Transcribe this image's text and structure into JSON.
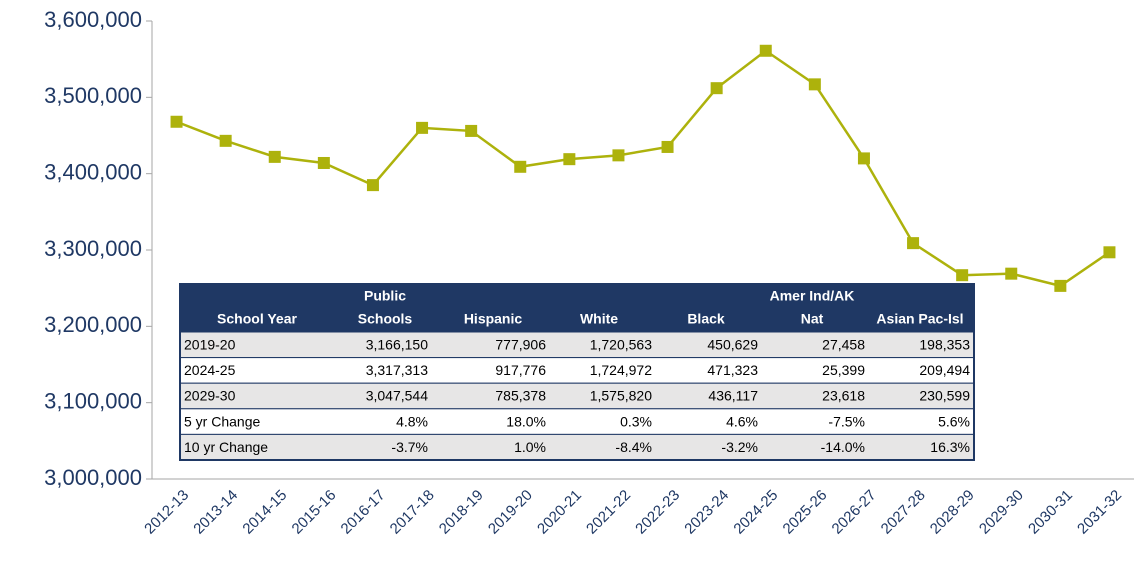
{
  "chart_data": {
    "type": "line",
    "categories": [
      "2012-13",
      "2013-14",
      "2014-15",
      "2015-16",
      "2016-17",
      "2017-18",
      "2018-19",
      "2019-20",
      "2020-21",
      "2021-22",
      "2022-23",
      "2023-24",
      "2024-25",
      "2025-26",
      "2026-27",
      "2027-28",
      "2028-29",
      "2029-30",
      "2030-31",
      "2031-32"
    ],
    "series": [
      {
        "color": "#adb20c",
        "values": [
          3468000,
          3443000,
          3422000,
          3414000,
          3385000,
          3460000,
          3456000,
          3409000,
          3419000,
          3424000,
          3435000,
          3512000,
          3561000,
          3517000,
          3420000,
          3309000,
          3267000,
          3269000,
          3253000,
          3297000
        ]
      }
    ],
    "ylim": [
      3000000,
      3600000
    ],
    "yticks": [
      {
        "value": 3000000,
        "label": "3,000,000"
      },
      {
        "value": 3100000,
        "label": "3,100,000"
      },
      {
        "value": 3200000,
        "label": "3,200,000"
      },
      {
        "value": 3300000,
        "label": "3,300,000"
      },
      {
        "value": 3400000,
        "label": "3,400,000"
      },
      {
        "value": 3500000,
        "label": "3,500,000"
      },
      {
        "value": 3600000,
        "label": "3,600,000"
      }
    ],
    "table": {
      "header": [
        [
          "School Year"
        ],
        [
          "Public",
          "Schools"
        ],
        [
          "Hispanic"
        ],
        [
          "White"
        ],
        [
          "Black"
        ],
        [
          "Amer Ind/AK",
          "Nat"
        ],
        [
          "Asian Pac-Isl"
        ]
      ],
      "rows": [
        [
          "2019-20",
          "3,166,150",
          "777,906",
          "1,720,563",
          "450,629",
          "27,458",
          "198,353"
        ],
        [
          "2024-25",
          "3,317,313",
          "917,776",
          "1,724,972",
          "471,323",
          "25,399",
          "209,494"
        ],
        [
          "2029-30",
          "3,047,544",
          "785,378",
          "1,575,820",
          "436,117",
          "23,618",
          "230,599"
        ],
        [
          "5 yr Change",
          "4.8%",
          "18.0%",
          "0.3%",
          "4.6%",
          "-7.5%",
          "5.6%"
        ],
        [
          "10 yr Change",
          "-3.7%",
          "1.0%",
          "-8.4%",
          "-3.2%",
          "-14.0%",
          "16.3%"
        ]
      ]
    }
  }
}
